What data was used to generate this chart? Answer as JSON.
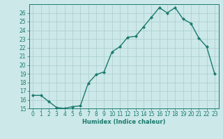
{
  "xlabel": "Humidex (Indice chaleur)",
  "x": [
    0,
    1,
    2,
    3,
    4,
    5,
    6,
    7,
    8,
    9,
    10,
    11,
    12,
    13,
    14,
    15,
    16,
    17,
    18,
    19,
    20,
    21,
    22,
    23
  ],
  "y": [
    16.5,
    16.5,
    15.8,
    15.1,
    15.0,
    15.2,
    15.3,
    17.9,
    18.9,
    19.2,
    21.5,
    22.1,
    23.2,
    23.3,
    24.4,
    25.5,
    26.6,
    26.0,
    26.6,
    25.3,
    24.8,
    23.1,
    22.1,
    19.0
  ],
  "line_color": "#1a7a6e",
  "marker": "D",
  "marker_size": 2.0,
  "bg_color": "#cce8e8",
  "grid_color": "#aacccc",
  "tick_color": "#1a7a6e",
  "label_color": "#1a7a6e",
  "ylim": [
    15,
    27
  ],
  "xlim": [
    -0.5,
    23.5
  ],
  "yticks": [
    15,
    16,
    17,
    18,
    19,
    20,
    21,
    22,
    23,
    24,
    25,
    26
  ],
  "xticks": [
    0,
    1,
    2,
    3,
    4,
    5,
    6,
    7,
    8,
    9,
    10,
    11,
    12,
    13,
    14,
    15,
    16,
    17,
    18,
    19,
    20,
    21,
    22,
    23
  ],
  "tick_fontsize": 5.5,
  "xlabel_fontsize": 6.0,
  "linewidth": 1.0
}
